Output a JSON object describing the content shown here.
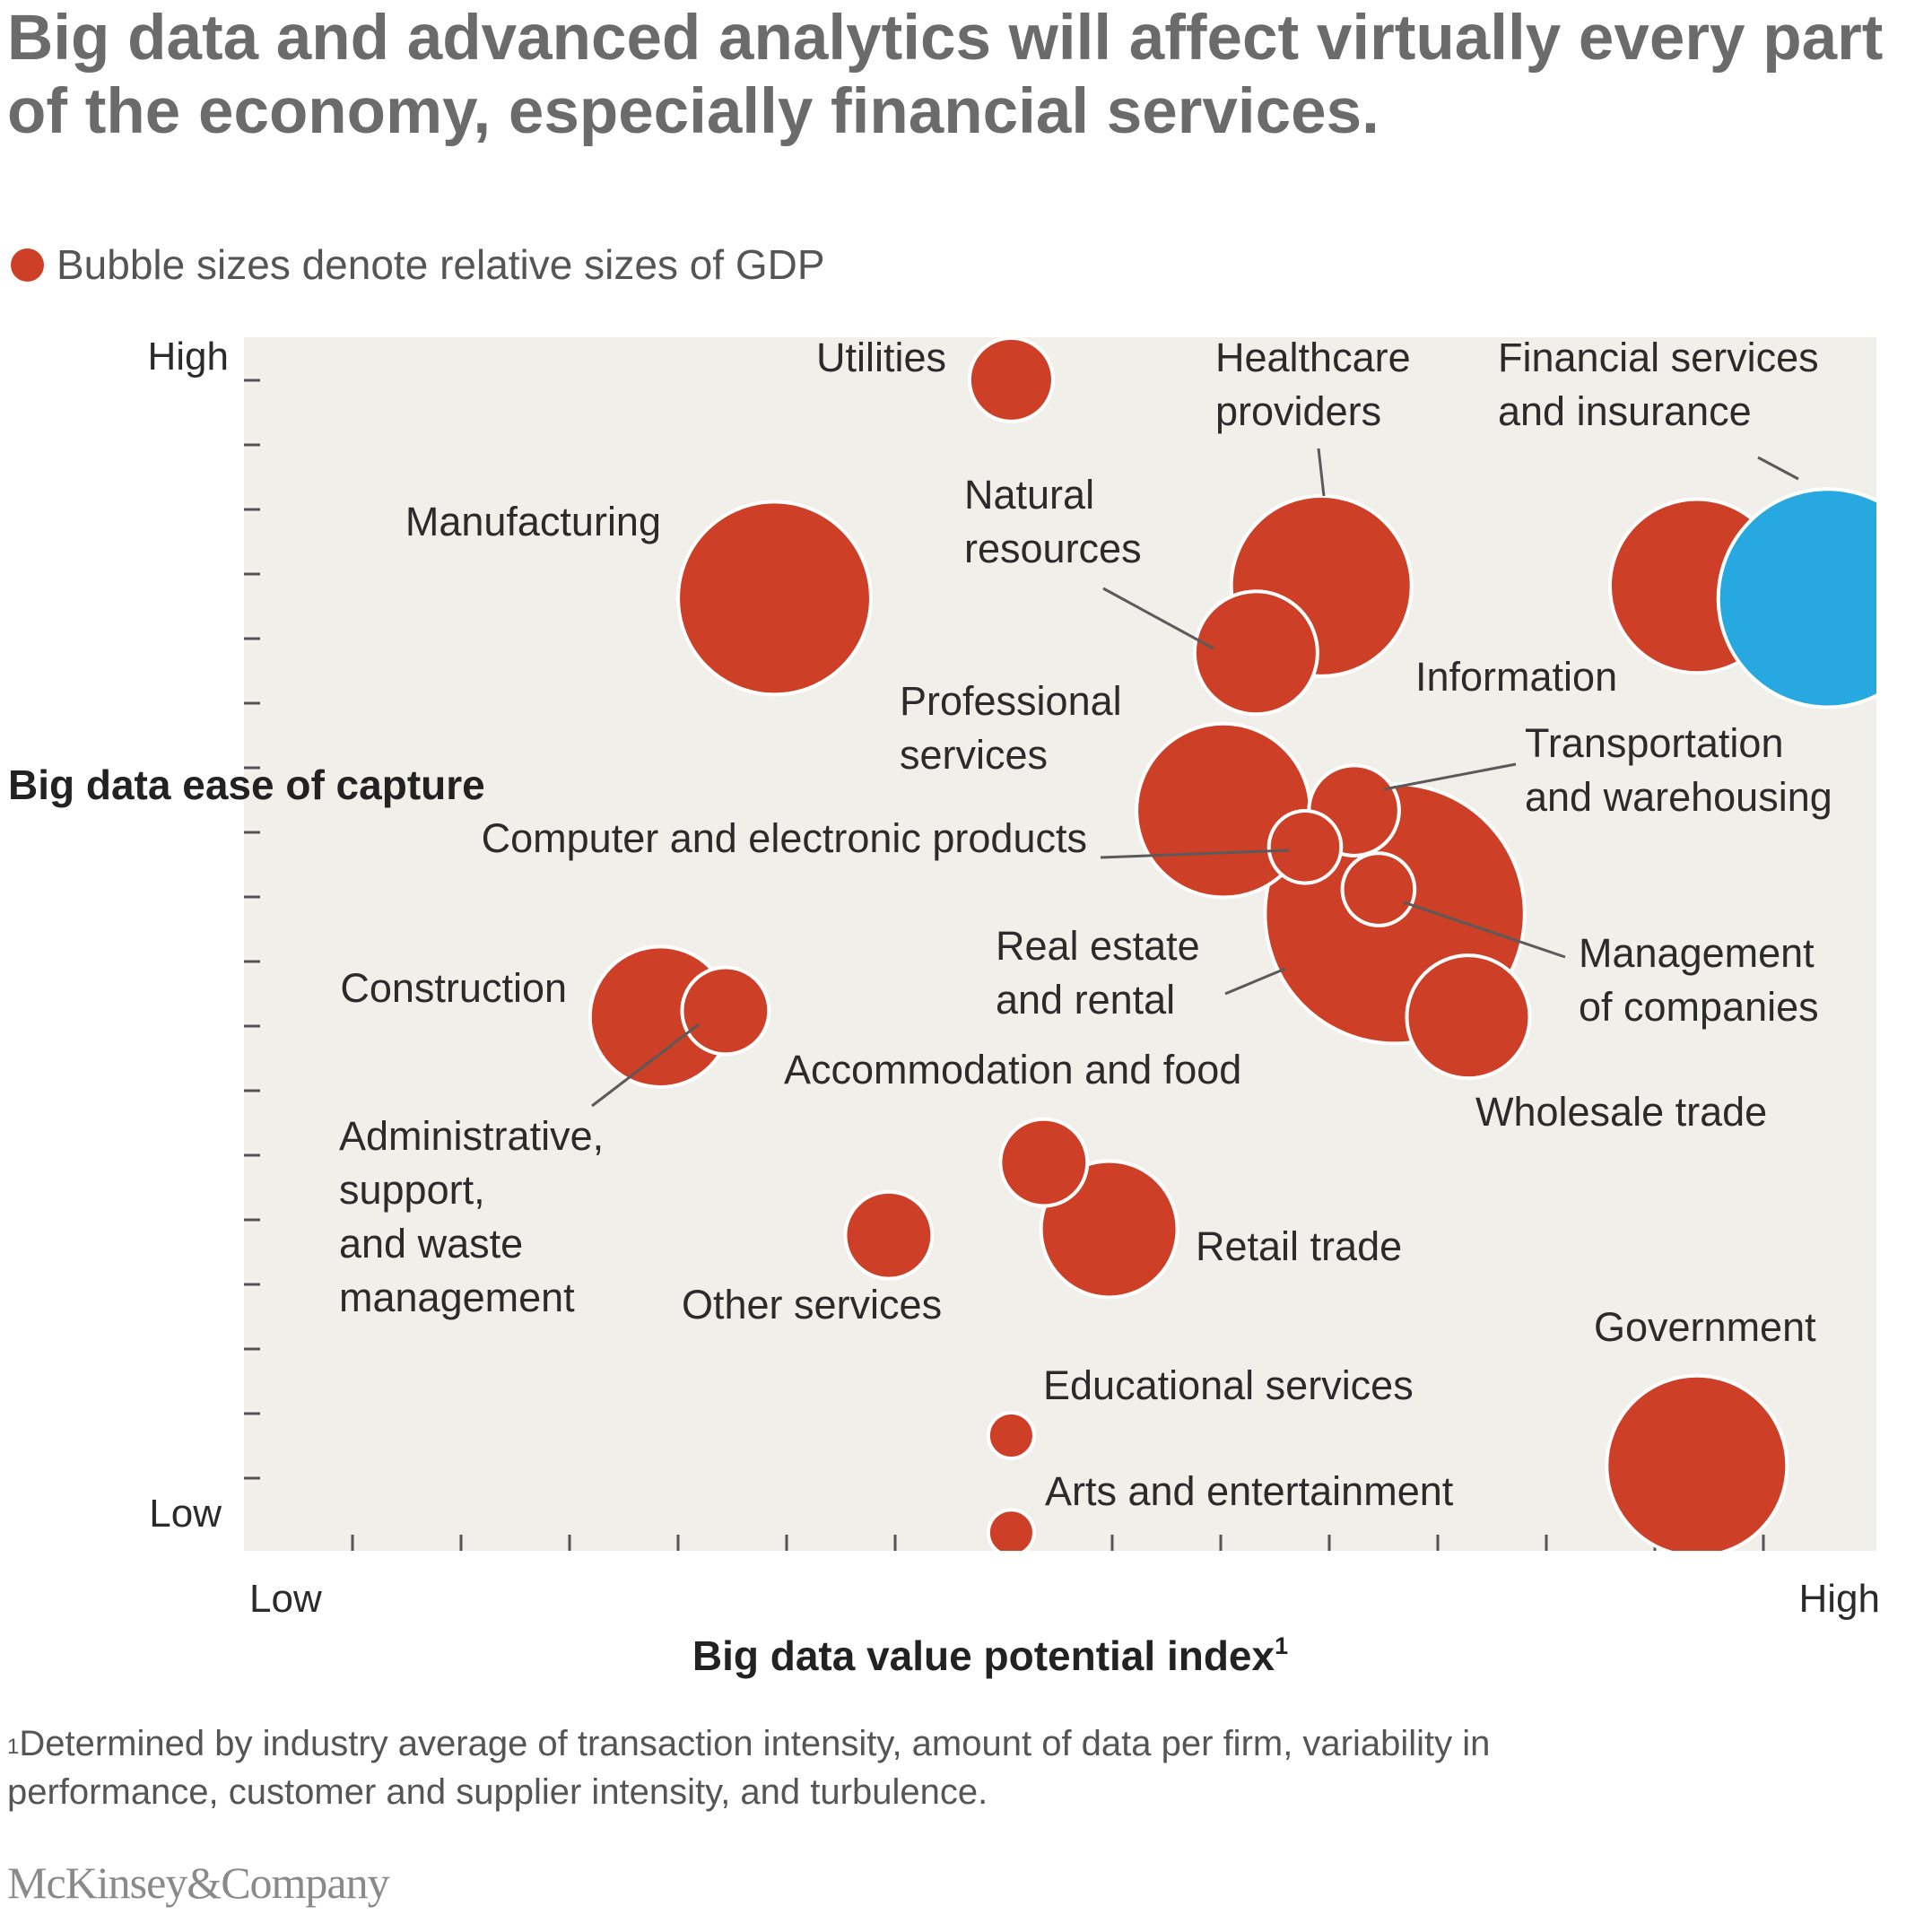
{
  "page": {
    "title": "Big data and advanced analytics will affect virtually every part of the economy, especially financial services.",
    "legend_text": "Bubble sizes denote relative sizes of GDP",
    "footnote_marker": "1",
    "footnote": "Determined by industry average of transaction intensity, amount of data per firm, variability in\nperformance, customer and supplier intensity, and turbulence.",
    "logo": "McKinsey&Company"
  },
  "colors": {
    "bubble": "#cd3f26",
    "highlight": "#27a8e0",
    "plot_background": "#f0efea",
    "bubble_outline": "#ffffff",
    "leader_line": "#5a5a5a",
    "text": "#2b2b2b"
  },
  "chart_data": {
    "type": "scatter",
    "subtype": "bubble",
    "xlabel": "Big data value potential index",
    "xlabel_footnote": "1",
    "ylabel": "Big data ease of capture",
    "xlim": [
      0,
      100
    ],
    "ylim": [
      0,
      100
    ],
    "x_tick_labels": {
      "low": "Low",
      "high": "High"
    },
    "y_tick_labels": {
      "low": "Low",
      "high": "High"
    },
    "grid": false,
    "legend": "top-left",
    "points": [
      {
        "name": "Utilities",
        "x": 47,
        "y": 96.5,
        "size": 6
      },
      {
        "name": "Healthcare providers",
        "x": 66,
        "y": 79.5,
        "size": 28
      },
      {
        "name": "Information",
        "x": 89,
        "y": 79.5,
        "size": 26
      },
      {
        "name": "Financial services and insurance",
        "x": 97,
        "y": 78.5,
        "size": 41,
        "highlight": true
      },
      {
        "name": "Manufacturing",
        "x": 32.5,
        "y": 78.5,
        "size": 32
      },
      {
        "name": "Natural resources",
        "x": 62,
        "y": 74,
        "size": 13
      },
      {
        "name": "Real estate and rental",
        "x": 70.5,
        "y": 52.5,
        "size": 58
      },
      {
        "name": "Professional services",
        "x": 60,
        "y": 61,
        "size": 26
      },
      {
        "name": "Transportation and warehousing",
        "x": 68,
        "y": 61,
        "size": 7
      },
      {
        "name": "Computer and electronic products",
        "x": 65,
        "y": 58,
        "size": 4.5
      },
      {
        "name": "Management of companies",
        "x": 69.5,
        "y": 54.5,
        "size": 4.5
      },
      {
        "name": "Wholesale trade",
        "x": 75,
        "y": 44,
        "size": 13
      },
      {
        "name": "Construction",
        "x": 25.5,
        "y": 44,
        "size": 17
      },
      {
        "name": "Administrative, support, and waste management",
        "x": 29.5,
        "y": 44.5,
        "size": 6.5
      },
      {
        "name": "Accommodation and food",
        "x": 49,
        "y": 32,
        "size": 6.5
      },
      {
        "name": "Retail trade",
        "x": 53,
        "y": 26.5,
        "size": 16
      },
      {
        "name": "Other services",
        "x": 39.5,
        "y": 26,
        "size": 6.5
      },
      {
        "name": "Educational services",
        "x": 47,
        "y": 9.5,
        "size": 1.8
      },
      {
        "name": "Government",
        "x": 89,
        "y": 7,
        "size": 28
      },
      {
        "name": "Arts and entertainment",
        "x": 47,
        "y": 1.5,
        "size": 1.8
      }
    ]
  }
}
